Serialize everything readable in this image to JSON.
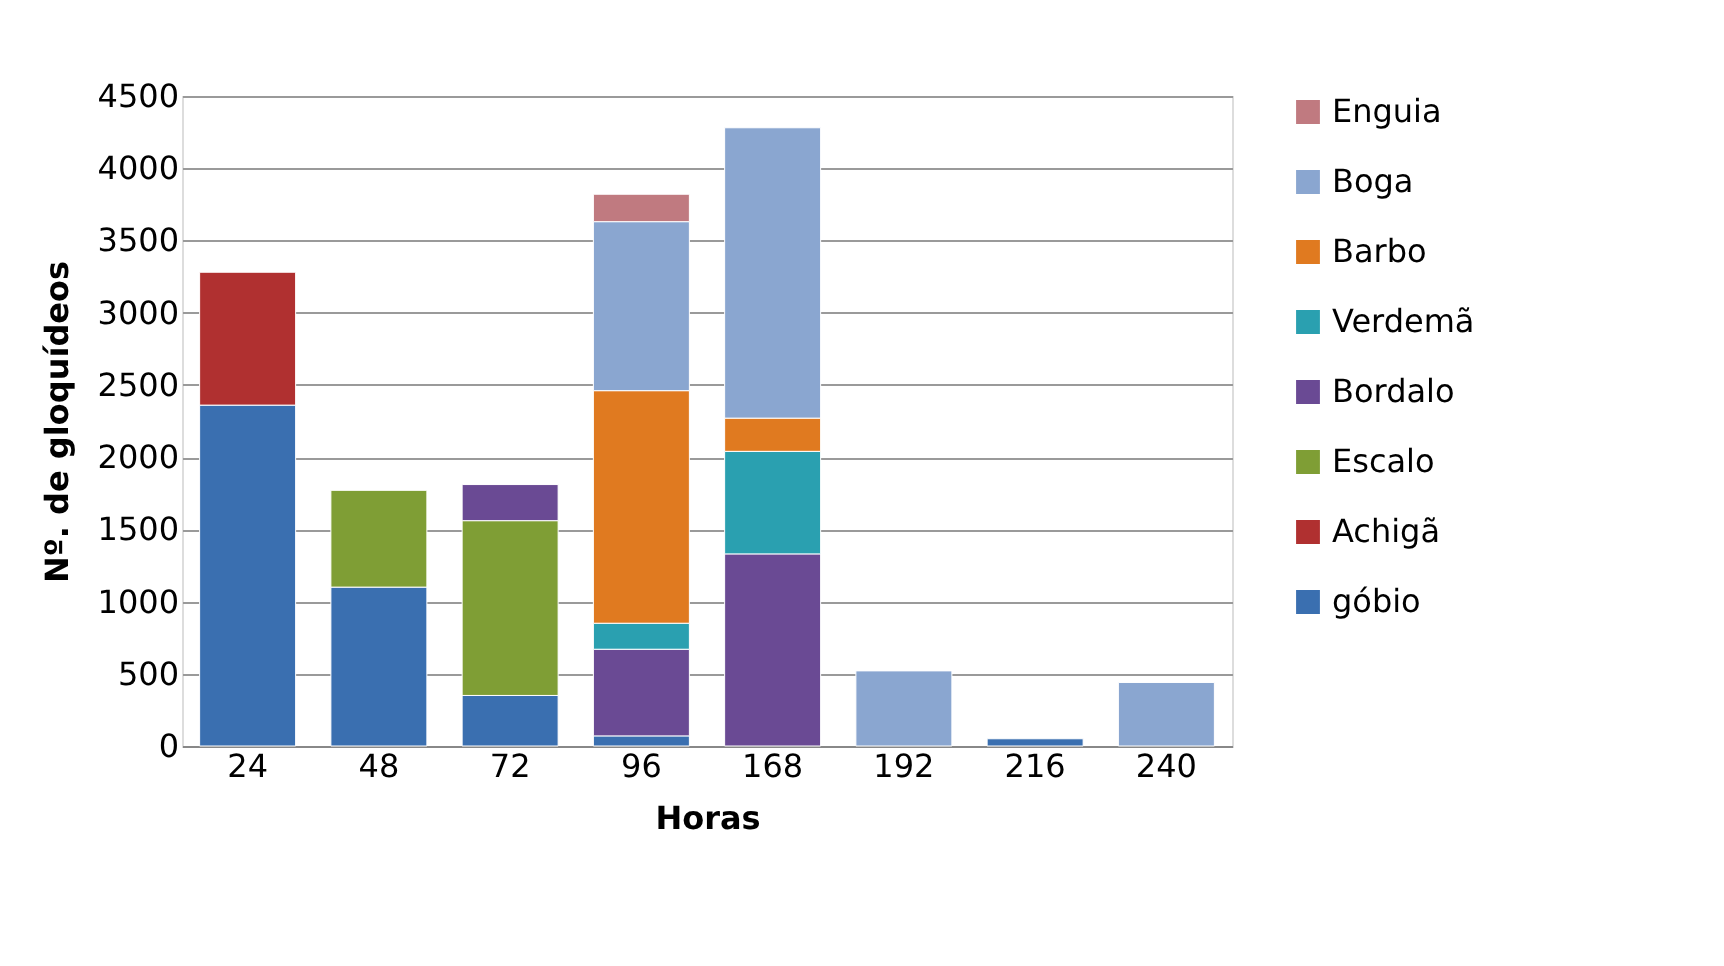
{
  "chart_data": {
    "type": "bar",
    "stacked": true,
    "xlabel": "Horas",
    "ylabel": "Nº. de gloquídeos",
    "categories": [
      "24",
      "48",
      "72",
      "96",
      "168",
      "192",
      "216",
      "240"
    ],
    "series": [
      {
        "name": "góbio",
        "color": "#3a6fb0",
        "values": [
          2360,
          1100,
          350,
          70,
          null,
          null,
          50,
          null
        ]
      },
      {
        "name": "Achigã",
        "color": "#b03030",
        "values": [
          920,
          null,
          null,
          null,
          null,
          null,
          null,
          null
        ]
      },
      {
        "name": "Escalo",
        "color": "#7f9e35",
        "values": [
          null,
          670,
          1210,
          null,
          null,
          null,
          null,
          null
        ]
      },
      {
        "name": "Bordalo",
        "color": "#6a4a94",
        "values": [
          null,
          null,
          250,
          600,
          1330,
          null,
          null,
          null
        ]
      },
      {
        "name": "Verdemã",
        "color": "#2aa0b0",
        "values": [
          null,
          null,
          null,
          180,
          710,
          null,
          null,
          null
        ]
      },
      {
        "name": "Barbo",
        "color": "#e07a20",
        "values": [
          null,
          null,
          null,
          1610,
          230,
          null,
          null,
          null
        ]
      },
      {
        "name": "Boga",
        "color": "#8aa6d0",
        "values": [
          null,
          null,
          null,
          1170,
          2010,
          520,
          null,
          440
        ]
      },
      {
        "name": "Enguia",
        "color": "#c07a80",
        "values": [
          null,
          null,
          null,
          190,
          null,
          null,
          null,
          null
        ]
      }
    ],
    "ylim": [
      0,
      4500
    ],
    "yticks": [
      0,
      500,
      1000,
      1500,
      2000,
      2500,
      3000,
      3500,
      4000,
      4500
    ],
    "grid": "y",
    "legend": "right"
  }
}
